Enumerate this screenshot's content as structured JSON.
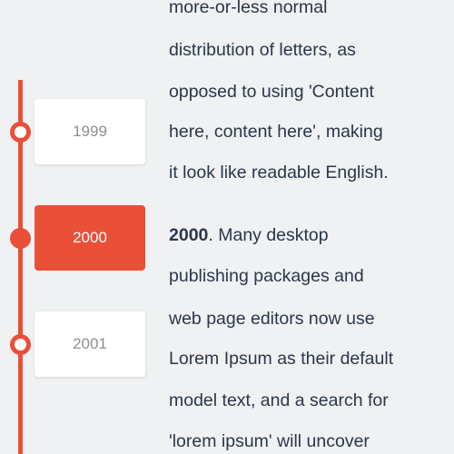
{
  "timeline": {
    "years": [
      {
        "label": "1999",
        "active": false
      },
      {
        "label": "2000",
        "active": true
      },
      {
        "label": "2001",
        "active": false
      }
    ]
  },
  "content": {
    "lines": [
      "more-or-less normal",
      "distribution of letters, as",
      "opposed to using 'Content",
      "here, content here', making",
      "it look like readable English."
    ],
    "entry_year": "2000",
    "entry_first_line_rest": ". Many desktop",
    "entry_lines": [
      "publishing packages and",
      "web page editors now use",
      "Lorem Ipsum as their default",
      "model text, and a search for",
      "'lorem ipsum' will uncover"
    ]
  },
  "colors": {
    "accent": "#ea4f37",
    "background": "#eff1f3",
    "text": "#2b3749",
    "inactive_year_text": "#8f8f8f"
  }
}
